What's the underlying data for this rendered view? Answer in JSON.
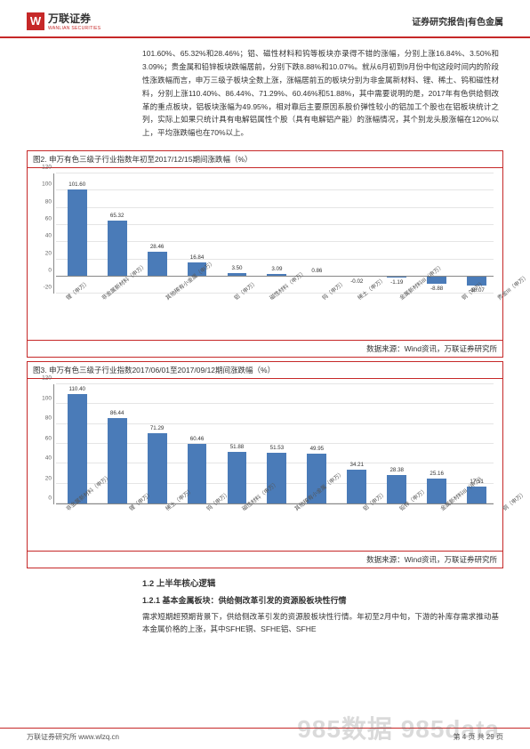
{
  "header": {
    "logo_chinese": "万联证券",
    "logo_pinyin": "WANLIAN SECURITIES",
    "right_text": "证券研究报告|有色金属"
  },
  "para1": "101.60%、65.32%和28.46%；铝、磁性材料和钨等板块亦录得不错的涨幅，分别上涨16.84%、3.50%和3.09%；贵金属和铅锌板块跌幅居前，分别下跌8.88%和10.07%。就从6月初到9月份中旬这段时间内的阶段性涨跌幅而言，申万三级子板块全数上涨，涨幅居前五的板块分别为非金属新材料、锂、稀土、钨和磁性材料，分别上涨110.40%、86.44%、71.29%、60.46%和51.88%，其中需要说明的是，2017年有色供给侧改革的重点板块，铝板块涨幅为49.95%，相对靠后主要原因系股价弹性较小的铝加工个股也在铝板块统计之列，实际上如果只统计具有电解铝属性个股（具有电解铝产能）的涨幅情况，其个别龙头股涨幅在120%以上，平均涨跌幅也在70%以上。",
  "chart2": {
    "title": "图2. 申万有色三级子行业指数年初至2017/12/15期间涨跌幅（%）",
    "ylim_low": -20,
    "ylim_high": 120,
    "ytick_step": 20,
    "bar_color": "#4a7bb8",
    "source": "数据来源：Wind资讯，万联证券研究所",
    "categories": [
      "锂（申万）",
      "非金属新材料（申万）",
      "其他稀有小金属（申万）",
      "铝（申万）",
      "磁性材料（申万）",
      "钨（申万）",
      "稀土（申万）",
      "金属新材料III（申万）",
      "铜（申万）",
      "贵金III（申万）",
      "铅锌（申万）"
    ],
    "values": [
      101.6,
      65.32,
      28.46,
      16.84,
      3.5,
      3.09,
      0.86,
      -0.02,
      -1.19,
      -8.88,
      -10.07
    ]
  },
  "chart3": {
    "title": "图3. 申万有色三级子行业指数2017/06/01至2017/09/12期间涨跌幅（%）",
    "ylim_low": 0,
    "ylim_high": 120,
    "ytick_step": 20,
    "bar_color": "#4a7bb8",
    "source": "数据来源：Wind资讯，万联证券研究所",
    "categories": [
      "非金属新材料（申万）",
      "锂（申万）",
      "稀土（申万）",
      "钨（申万）",
      "磁性材料（申万）",
      "其他稀有小金属（申万）",
      "铝（申万）",
      "铅锌（申万）",
      "金属新材料III（申万）",
      "铜（申万）",
      "贵金III（申万）"
    ],
    "values": [
      110.4,
      86.44,
      71.29,
      60.46,
      51.88,
      51.53,
      49.95,
      34.21,
      28.38,
      25.16,
      17.51
    ]
  },
  "section": {
    "h1": "1.2 上半年核心逻辑",
    "h2": "1.2.1 基本金属板块：供给侧改革引发的资源股板块性行情",
    "p": "需求短期超预期背景下，供给侧改革引发的资源股板块性行情。年初至2月中旬，下游的补库存需求推动基本金属价格的上涨，其中SFHE铜、SFHE铝、SFHE"
  },
  "footer": {
    "left": "万联证券研究所 www.wlzq.cn",
    "right": "第 4 页 共 29 页"
  },
  "watermark": "985数据 985data"
}
